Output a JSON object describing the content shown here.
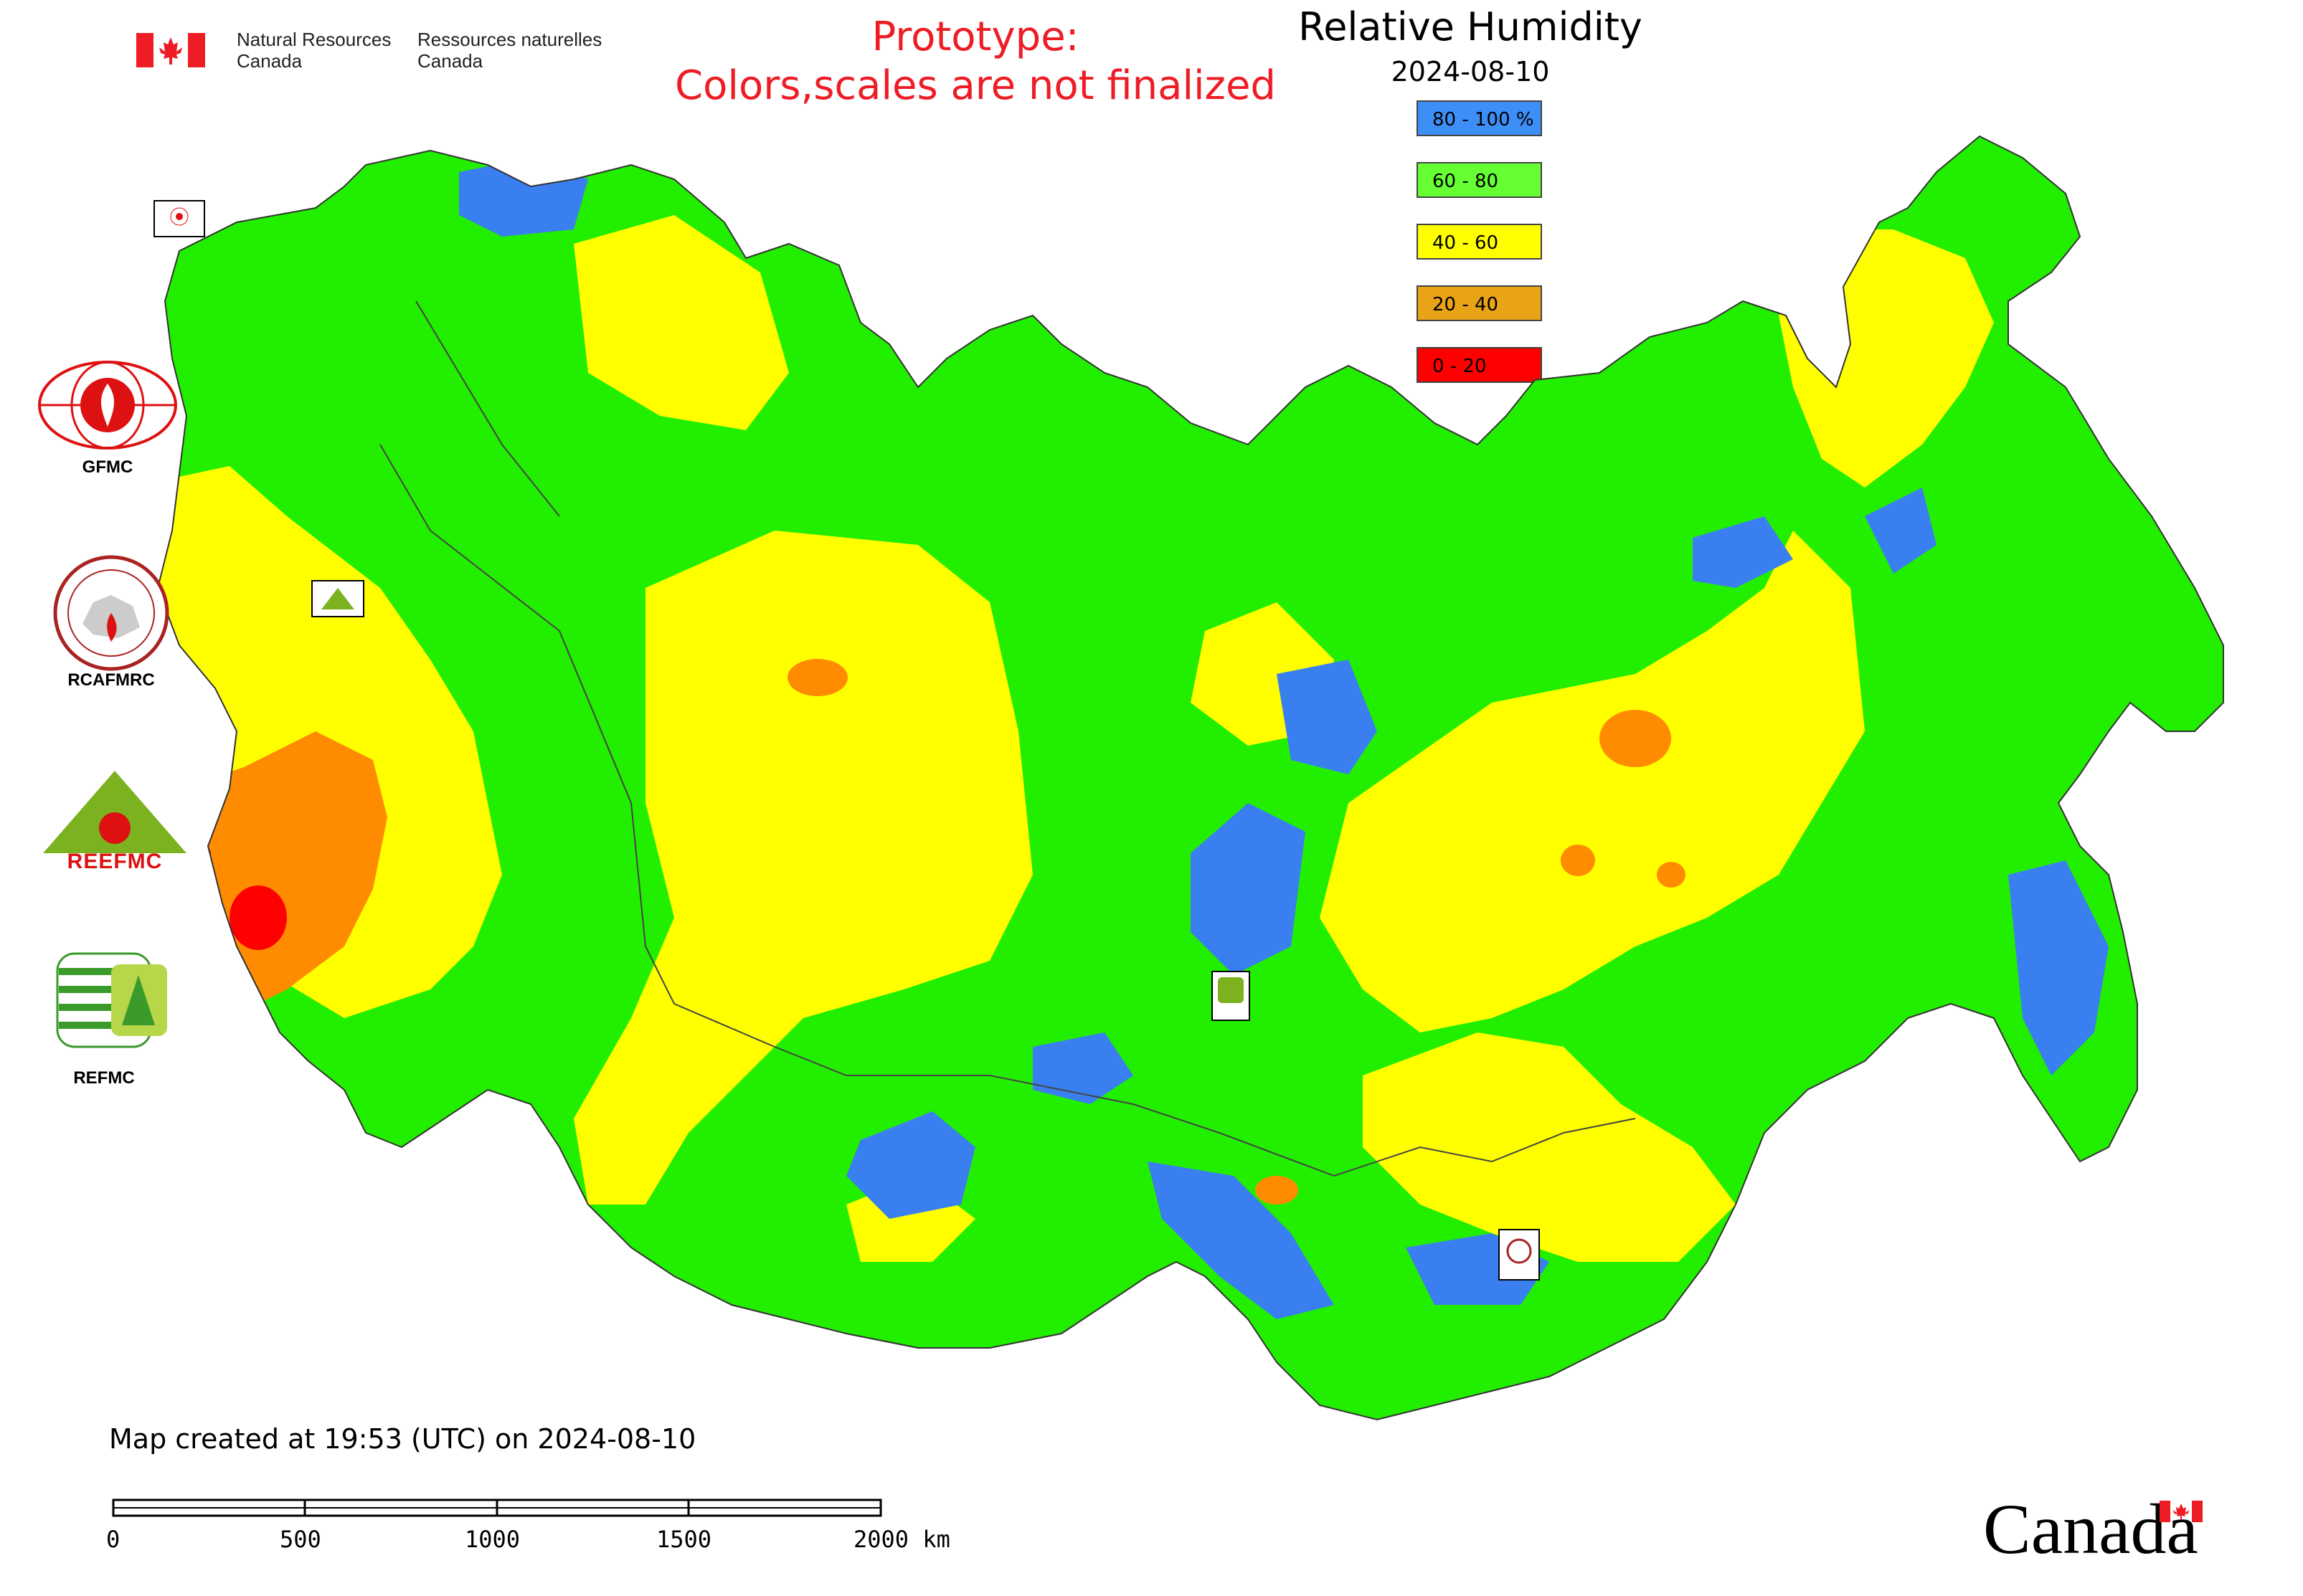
{
  "header": {
    "org_en_line1": "Natural Resources",
    "org_en_line2": "Canada",
    "org_fr_line1": "Ressources naturelles",
    "org_fr_line2": "Canada"
  },
  "prototype_notice": {
    "line1": "Prototype:",
    "line2": "Colors,scales are not finalized"
  },
  "title": "Relative Humidity",
  "date": "2024-08-10",
  "legend": [
    {
      "label": "80 - 100 %",
      "color": "#3e8ef7"
    },
    {
      "label": "60 - 80",
      "color": "#66ff33"
    },
    {
      "label": "40 - 60",
      "color": "#ffff00"
    },
    {
      "label": "20 - 40",
      "color": "#e8a317"
    },
    {
      "label": "0 - 20",
      "color": "#ff0000"
    }
  ],
  "side_logos": [
    {
      "label": "GFMC",
      "icon": "gfmc-logo"
    },
    {
      "label": "RCAFMRC",
      "icon": "rcafmrc-logo"
    },
    {
      "label": "",
      "icon": "reefmc-logo",
      "text": "REEFMC"
    },
    {
      "label": "REFMC",
      "icon": "refmc-logo"
    }
  ],
  "map_markers": [
    {
      "label": "GFMC",
      "icon": "gfmc-marker"
    },
    {
      "label": "REEFMC",
      "icon": "reefmc-marker"
    },
    {
      "label": "REFMC",
      "icon": "refmc-marker"
    },
    {
      "label": "RCAFMRC",
      "icon": "rcafmrc-marker"
    }
  ],
  "footer": {
    "created": "Map created at 19:53 (UTC) on 2024-08-10",
    "scale_ticks": [
      "0",
      "500",
      "1000",
      "1500",
      "2000 km"
    ],
    "wordmark": "Canada"
  },
  "colors": {
    "green": "#22ee00",
    "yellow": "#ffff00",
    "orange": "#ff8c00",
    "red": "#ff0000",
    "blue": "#3a7ff0",
    "brand_red": "#ee1c25"
  }
}
